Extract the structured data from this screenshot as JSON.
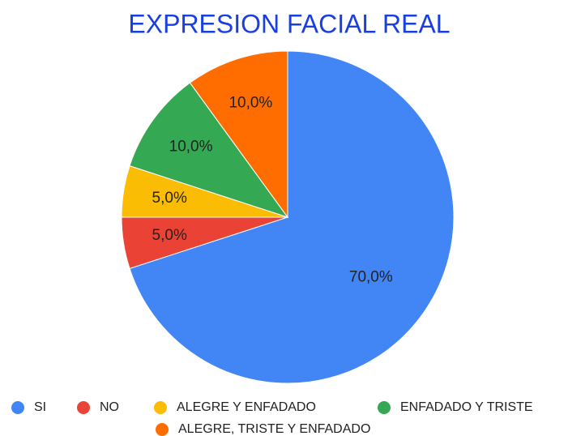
{
  "chart_data": {
    "type": "pie",
    "title": "EXPRESION FACIAL REAL",
    "categories": [
      "SI",
      "NO",
      "ALEGRE Y ENFADADO",
      "ENFADADO Y TRISTE",
      "ALEGRE, TRISTE Y ENFADADO"
    ],
    "values": [
      70,
      5,
      5,
      10,
      10
    ],
    "value_labels": [
      "70,0%",
      "5,0%",
      "5,0%",
      "10,0%",
      "10,0%"
    ],
    "colors": [
      "#4285f4",
      "#ea4335",
      "#fbbc04",
      "#34a853",
      "#ff6d01"
    ],
    "legend": "bottom"
  }
}
